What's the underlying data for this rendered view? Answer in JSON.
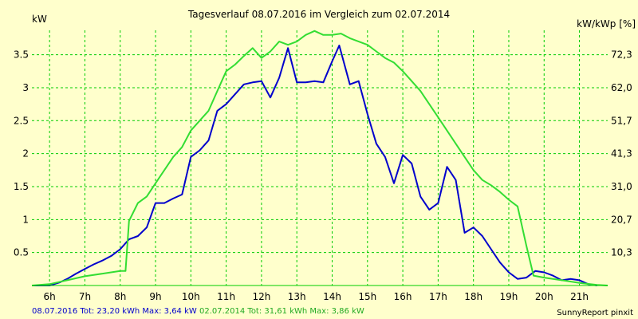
{
  "chart_data": {
    "type": "line",
    "title": "Tagesverlauf 08.07.2016 im Vergleich zum 02.07.2014",
    "ylabel": "kW",
    "y2label": "kW/kWp [%]",
    "xlabel": "",
    "xlim": [
      5.5,
      21.8
    ],
    "ylim": [
      0,
      3.87
    ],
    "x_ticks": [
      6,
      7,
      8,
      9,
      10,
      11,
      12,
      13,
      14,
      15,
      16,
      17,
      18,
      19,
      20,
      21
    ],
    "x_tick_labels": [
      "6h",
      "7h",
      "8h",
      "9h",
      "10h",
      "11h",
      "12h",
      "13h",
      "14h",
      "15h",
      "16h",
      "17h",
      "18h",
      "19h",
      "20h",
      "21h"
    ],
    "y_ticks": [
      0.5,
      1,
      1.5,
      2,
      2.5,
      3,
      3.5
    ],
    "y_tick_labels": [
      "0.5",
      "1",
      "1.5",
      "2",
      "2.5",
      "3",
      "3.5"
    ],
    "y2_tick_labels": [
      "10,3",
      "20,7",
      "31,0",
      "41,3",
      "51,7",
      "62,0",
      "72,3"
    ],
    "grid": true,
    "colors": {
      "background": "#FFFFCC",
      "grid": "#00CC00",
      "series_2016": "#0000CC",
      "series_2014": "#33DD33"
    },
    "series": [
      {
        "name": "08.07.2016",
        "color": "#0000CC",
        "x": [
          5.5,
          6.0,
          6.3,
          6.5,
          6.75,
          7.0,
          7.25,
          7.5,
          7.75,
          8.0,
          8.25,
          8.5,
          8.75,
          9.0,
          9.25,
          9.5,
          9.75,
          10.0,
          10.25,
          10.5,
          10.75,
          11.0,
          11.25,
          11.5,
          11.75,
          12.0,
          12.25,
          12.5,
          12.75,
          13.0,
          13.25,
          13.5,
          13.75,
          14.0,
          14.2,
          14.5,
          14.75,
          15.0,
          15.25,
          15.5,
          15.75,
          16.0,
          16.25,
          16.5,
          16.75,
          17.0,
          17.25,
          17.5,
          17.75,
          18.0,
          18.25,
          18.5,
          18.75,
          19.0,
          19.25,
          19.5,
          19.75,
          20.0,
          20.25,
          20.5,
          20.75,
          21.0,
          21.25,
          21.5
        ],
        "y": [
          0,
          0,
          0.05,
          0.1,
          0.18,
          0.25,
          0.32,
          0.38,
          0.45,
          0.55,
          0.7,
          0.75,
          0.88,
          1.25,
          1.25,
          1.32,
          1.38,
          1.95,
          2.05,
          2.2,
          2.65,
          2.75,
          2.9,
          3.05,
          3.08,
          3.1,
          2.85,
          3.15,
          3.6,
          3.08,
          3.08,
          3.1,
          3.08,
          3.4,
          3.64,
          3.05,
          3.1,
          2.6,
          2.15,
          1.95,
          1.55,
          1.98,
          1.85,
          1.35,
          1.15,
          1.25,
          1.8,
          1.6,
          0.8,
          0.88,
          0.75,
          0.55,
          0.35,
          0.2,
          0.1,
          0.12,
          0.22,
          0.2,
          0.15,
          0.08,
          0.1,
          0.08,
          0.02,
          0
        ]
      },
      {
        "name": "02.07.2014",
        "color": "#33DD33",
        "x": [
          5.5,
          6.0,
          6.5,
          7.0,
          7.5,
          8.0,
          8.15,
          8.25,
          8.5,
          8.75,
          9.0,
          9.25,
          9.5,
          9.75,
          10.0,
          10.25,
          10.5,
          10.75,
          11.0,
          11.25,
          11.5,
          11.75,
          12.0,
          12.25,
          12.5,
          12.75,
          13.0,
          13.25,
          13.5,
          13.75,
          14.0,
          14.25,
          14.5,
          14.75,
          15.0,
          15.25,
          15.5,
          15.75,
          16.0,
          16.25,
          16.5,
          16.75,
          17.0,
          17.25,
          17.5,
          17.75,
          18.0,
          18.25,
          18.5,
          18.75,
          19.0,
          19.25,
          19.5,
          19.7,
          20.0,
          20.5,
          21.0,
          21.5,
          21.8
        ],
        "y": [
          0,
          0.02,
          0.08,
          0.14,
          0.18,
          0.22,
          0.22,
          0.98,
          1.25,
          1.35,
          1.55,
          1.75,
          1.95,
          2.1,
          2.35,
          2.5,
          2.65,
          2.95,
          3.25,
          3.35,
          3.48,
          3.6,
          3.45,
          3.55,
          3.7,
          3.65,
          3.7,
          3.8,
          3.86,
          3.8,
          3.8,
          3.82,
          3.75,
          3.7,
          3.65,
          3.55,
          3.45,
          3.38,
          3.25,
          3.1,
          2.95,
          2.75,
          2.55,
          2.35,
          2.15,
          1.95,
          1.75,
          1.6,
          1.52,
          1.42,
          1.3,
          1.2,
          0.6,
          0.15,
          0.12,
          0.08,
          0.04,
          0.01,
          0
        ]
      }
    ]
  },
  "footer": {
    "stats_2016": "08.07.2016 Tot: 23,20 kWh Max: 3,64 kW",
    "stats_2014": "02.07.2014 Tot: 31,61 kWh Max: 3,86 kW",
    "credit": "SunnyReport pinxit"
  }
}
